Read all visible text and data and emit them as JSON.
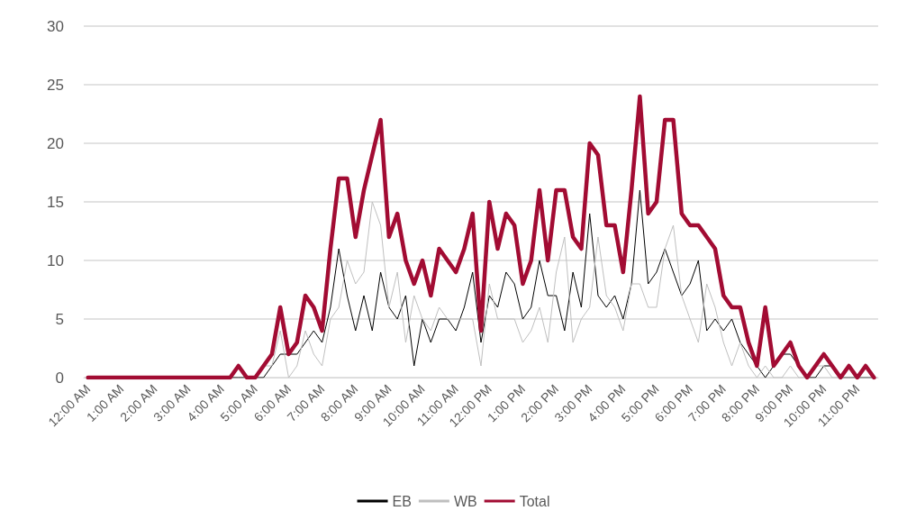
{
  "chart_data": {
    "type": "line",
    "categories": [
      "12:00 AM",
      null,
      null,
      null,
      "1:00 AM",
      null,
      null,
      null,
      "2:00 AM",
      null,
      null,
      null,
      "3:00 AM",
      null,
      null,
      null,
      "4:00 AM",
      null,
      null,
      null,
      "5:00 AM",
      null,
      null,
      null,
      "6:00 AM",
      null,
      null,
      null,
      "7:00 AM",
      null,
      null,
      null,
      "8:00 AM",
      null,
      null,
      null,
      "9:00 AM",
      null,
      null,
      null,
      "10:00 AM",
      null,
      null,
      null,
      "11:00 AM",
      null,
      null,
      null,
      "12:00 PM",
      null,
      null,
      null,
      "1:00 PM",
      null,
      null,
      null,
      "2:00 PM",
      null,
      null,
      null,
      "3:00 PM",
      null,
      null,
      null,
      "4:00 PM",
      null,
      null,
      null,
      "5:00 PM",
      null,
      null,
      null,
      "6:00 PM",
      null,
      null,
      null,
      "7:00 PM",
      null,
      null,
      null,
      "8:00 PM",
      null,
      null,
      null,
      "9:00 PM",
      null,
      null,
      null,
      "10:00 PM",
      null,
      null,
      null,
      "11:00 PM",
      null,
      null
    ],
    "series": [
      {
        "name": "EB",
        "color": "#000000",
        "values": [
          null,
          null,
          null,
          null,
          null,
          null,
          null,
          null,
          null,
          null,
          null,
          null,
          null,
          null,
          null,
          null,
          0,
          0,
          0,
          0,
          0,
          0,
          1,
          2,
          2,
          2,
          3,
          4,
          3,
          6,
          11,
          7,
          4,
          7,
          4,
          9,
          6,
          5,
          7,
          1,
          5,
          3,
          5,
          5,
          4,
          6,
          9,
          3,
          7,
          6,
          9,
          8,
          5,
          6,
          10,
          7,
          7,
          4,
          9,
          6,
          14,
          7,
          6,
          7,
          5,
          8,
          16,
          8,
          9,
          11,
          9,
          7,
          8,
          10,
          4,
          5,
          4,
          5,
          3,
          2,
          1,
          0,
          1,
          2,
          2,
          1,
          0,
          0,
          1,
          1,
          0,
          0,
          0,
          0,
          0
        ]
      },
      {
        "name": "WB",
        "color": "#bfbfbf",
        "values": [
          null,
          null,
          null,
          null,
          null,
          null,
          null,
          null,
          null,
          null,
          null,
          null,
          null,
          null,
          null,
          null,
          0,
          0,
          1,
          0,
          0,
          1,
          1,
          4,
          0,
          1,
          4,
          2,
          1,
          5,
          6,
          10,
          8,
          9,
          15,
          13,
          6,
          9,
          3,
          7,
          5,
          4,
          6,
          5,
          5,
          5,
          5,
          1,
          8,
          5,
          5,
          5,
          3,
          4,
          6,
          3,
          9,
          12,
          3,
          5,
          6,
          12,
          7,
          6,
          4,
          8,
          8,
          6,
          6,
          11,
          13,
          7,
          5,
          3,
          8,
          6,
          3,
          1,
          3,
          1,
          0,
          1,
          0,
          0,
          1,
          0,
          0,
          1,
          1,
          0,
          0,
          0,
          0,
          0,
          0
        ]
      },
      {
        "name": "Total",
        "color": "#a20c33",
        "values": [
          0,
          0,
          0,
          0,
          0,
          0,
          0,
          0,
          0,
          0,
          0,
          0,
          0,
          0,
          0,
          0,
          0,
          0,
          1,
          0,
          0,
          1,
          2,
          6,
          2,
          3,
          7,
          6,
          4,
          11,
          17,
          17,
          12,
          16,
          19,
          22,
          12,
          14,
          10,
          8,
          10,
          7,
          11,
          10,
          9,
          11,
          14,
          4,
          15,
          11,
          14,
          13,
          8,
          10,
          16,
          10,
          16,
          16,
          12,
          11,
          20,
          19,
          13,
          13,
          9,
          16,
          24,
          14,
          15,
          22,
          22,
          14,
          13,
          13,
          12,
          11,
          7,
          6,
          6,
          3,
          1,
          6,
          1,
          2,
          3,
          1,
          0,
          1,
          2,
          1,
          0,
          1,
          0,
          1,
          0
        ]
      }
    ],
    "ylim": [
      0,
      30
    ],
    "yticks": [
      0,
      5,
      10,
      15,
      20,
      25,
      30
    ],
    "grid": "y",
    "legend": "bottom",
    "marker": "none",
    "line_style": "solid"
  }
}
